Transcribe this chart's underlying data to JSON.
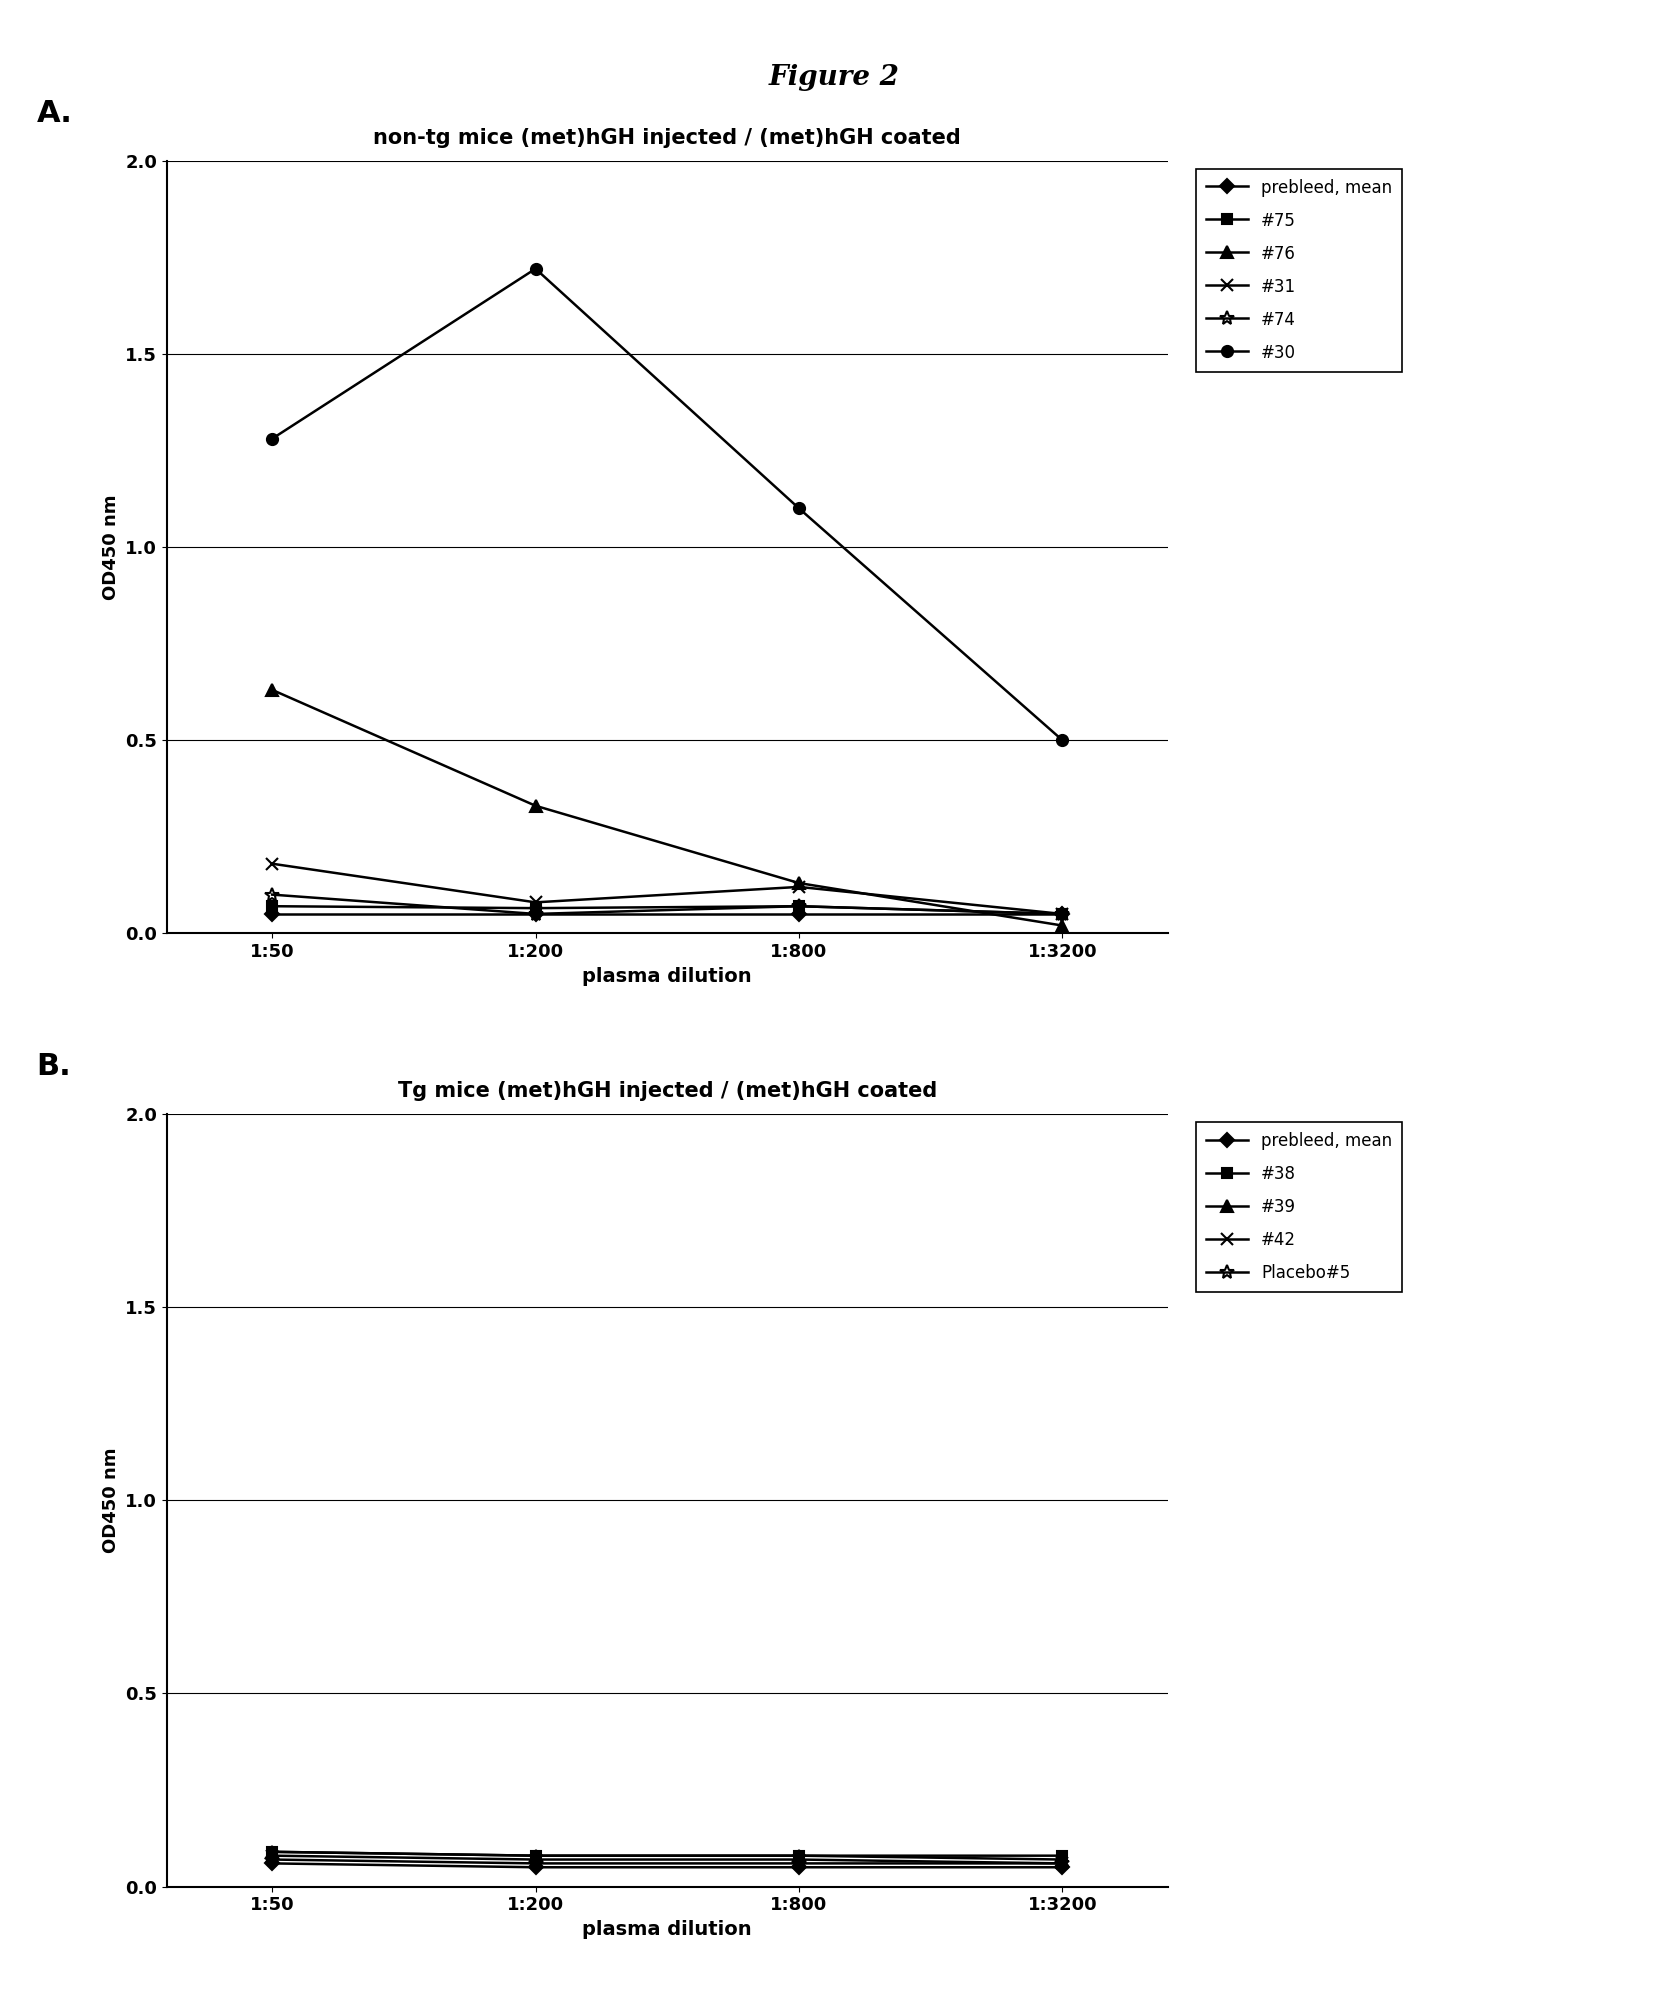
{
  "figure_title": "Figure 2",
  "x_labels": [
    "1:50",
    "1:200",
    "1:800",
    "1:3200"
  ],
  "x_values": [
    0,
    1,
    2,
    3
  ],
  "bg_color": "#f5f5f5",
  "panel_A": {
    "title": "non-tg mice (met)hGH injected / (met)hGH coated",
    "ylabel": "OD450 nm",
    "xlabel": "plasma dilution",
    "ylim": [
      0.0,
      2.0
    ],
    "yticks": [
      0.0,
      0.5,
      1.0,
      1.5,
      2.0
    ],
    "series": [
      {
        "label": "prebleed, mean",
        "values": [
          0.05,
          0.05,
          0.05,
          0.05
        ],
        "marker": "D",
        "linestyle": "-",
        "color": "#000000",
        "markersize": 7,
        "filled": true
      },
      {
        "label": "#75",
        "values": [
          0.07,
          0.065,
          0.07,
          0.05
        ],
        "marker": "s",
        "linestyle": "-",
        "color": "#000000",
        "markersize": 7,
        "filled": true
      },
      {
        "label": "#76",
        "values": [
          0.63,
          0.33,
          0.13,
          0.02
        ],
        "marker": "^",
        "linestyle": "-",
        "color": "#000000",
        "markersize": 8,
        "filled": true
      },
      {
        "label": "#31",
        "values": [
          0.18,
          0.08,
          0.12,
          0.05
        ],
        "marker": "x",
        "linestyle": "-",
        "color": "#000000",
        "markersize": 8,
        "filled": false
      },
      {
        "label": "#74",
        "values": [
          0.1,
          0.05,
          0.07,
          0.05
        ],
        "marker": "*",
        "linestyle": "-",
        "color": "#000000",
        "markersize": 10,
        "filled": false
      },
      {
        "label": "#30",
        "values": [
          1.28,
          1.72,
          1.1,
          0.5
        ],
        "marker": "o",
        "linestyle": "-",
        "color": "#000000",
        "markersize": 8,
        "filled": true
      }
    ]
  },
  "panel_B": {
    "title": "Tg mice (met)hGH injected / (met)hGH coated",
    "ylabel": "OD450 nm",
    "xlabel": "plasma dilution",
    "ylim": [
      0.0,
      2.0
    ],
    "yticks": [
      0.0,
      0.5,
      1.0,
      1.5,
      2.0
    ],
    "series": [
      {
        "label": "prebleed, mean",
        "values": [
          0.06,
          0.05,
          0.05,
          0.05
        ],
        "marker": "D",
        "linestyle": "-",
        "color": "#000000",
        "markersize": 7,
        "filled": true
      },
      {
        "label": "#38",
        "values": [
          0.09,
          0.08,
          0.08,
          0.08
        ],
        "marker": "s",
        "linestyle": "-",
        "color": "#000000",
        "markersize": 7,
        "filled": true
      },
      {
        "label": "#39",
        "values": [
          0.09,
          0.08,
          0.08,
          0.07
        ],
        "marker": "^",
        "linestyle": "-",
        "color": "#000000",
        "markersize": 8,
        "filled": true
      },
      {
        "label": "#42",
        "values": [
          0.08,
          0.07,
          0.07,
          0.06
        ],
        "marker": "x",
        "linestyle": "-",
        "color": "#000000",
        "markersize": 8,
        "filled": false
      },
      {
        "label": "Placebo#5",
        "values": [
          0.07,
          0.06,
          0.06,
          0.06
        ],
        "marker": "*",
        "linestyle": "-",
        "color": "#000000",
        "markersize": 10,
        "filled": false
      }
    ]
  }
}
